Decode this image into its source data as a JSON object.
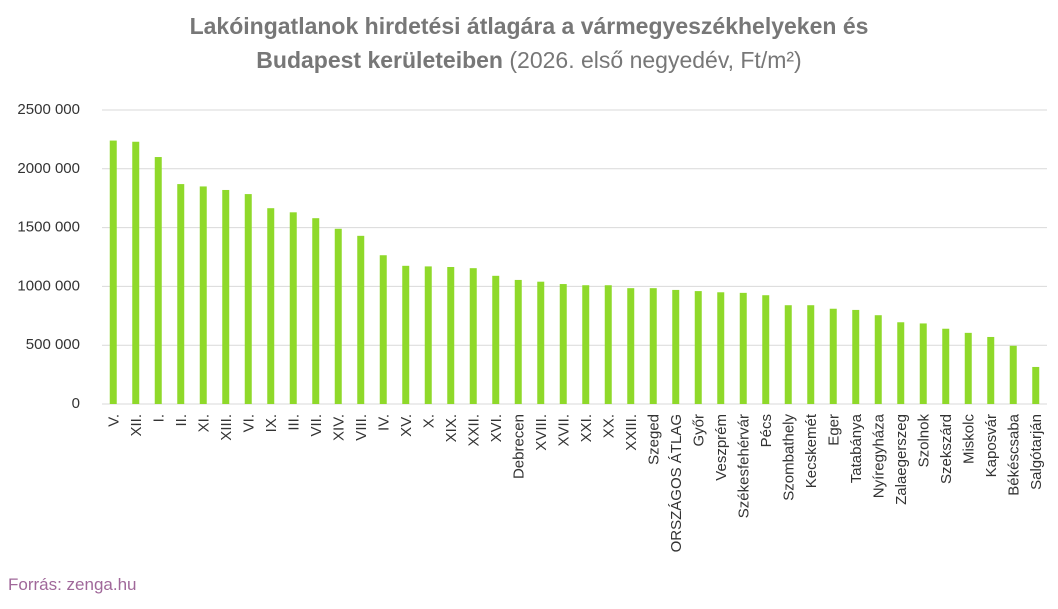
{
  "chart_data": {
    "type": "bar",
    "title": "Lakóingatlanok hirdetési átlagára a vármegyeszékhelyeken és",
    "title_line2": "Budapest kerületeiben",
    "subtitle": "(2026. első negyedév, Ft/m²)",
    "source": "Forrás: zenga.hu",
    "categories": [
      "V.",
      "XII.",
      "I.",
      "II.",
      "XI.",
      "XIII.",
      "VI.",
      "IX.",
      "III.",
      "VII.",
      "XIV.",
      "VIII.",
      "IV.",
      "XV.",
      "X.",
      "XIX.",
      "XXII.",
      "XVI.",
      "Debrecen",
      "XVIII.",
      "XVII.",
      "XXI.",
      "XX.",
      "XXIII.",
      "Szeged",
      "ORSZÁGOS ÁTLAG",
      "Győr",
      "Veszprém",
      "Székesfehérvár",
      "Pécs",
      "Szombathely",
      "Kecskemét",
      "Eger",
      "Tatabánya",
      "Nyíregyháza",
      "Zalaegerszeg",
      "Szolnok",
      "Szekszárd",
      "Miskolc",
      "Kaposvár",
      "Békéscsaba",
      "Salgótarján"
    ],
    "values": [
      2240000,
      2230000,
      2100000,
      1870000,
      1850000,
      1820000,
      1785000,
      1665000,
      1630000,
      1580000,
      1490000,
      1430000,
      1265000,
      1175000,
      1170000,
      1165000,
      1155000,
      1090000,
      1055000,
      1040000,
      1020000,
      1010000,
      1010000,
      985000,
      985000,
      970000,
      960000,
      950000,
      945000,
      925000,
      840000,
      840000,
      810000,
      800000,
      755000,
      695000,
      685000,
      640000,
      605000,
      570000,
      495000,
      315000
    ],
    "color": "#8fd92a",
    "ylim": [
      0,
      2500000
    ],
    "yticks": [
      0,
      {
        "value": 500000,
        "label": "500 000"
      },
      {
        "value": 1000000,
        "label": "1000 000"
      },
      {
        "value": 1500000,
        "label": "1500 000"
      },
      {
        "value": 2000000,
        "label": "2000 000"
      },
      {
        "value": 2500000,
        "label": "2500 000"
      }
    ],
    "grid": true
  }
}
